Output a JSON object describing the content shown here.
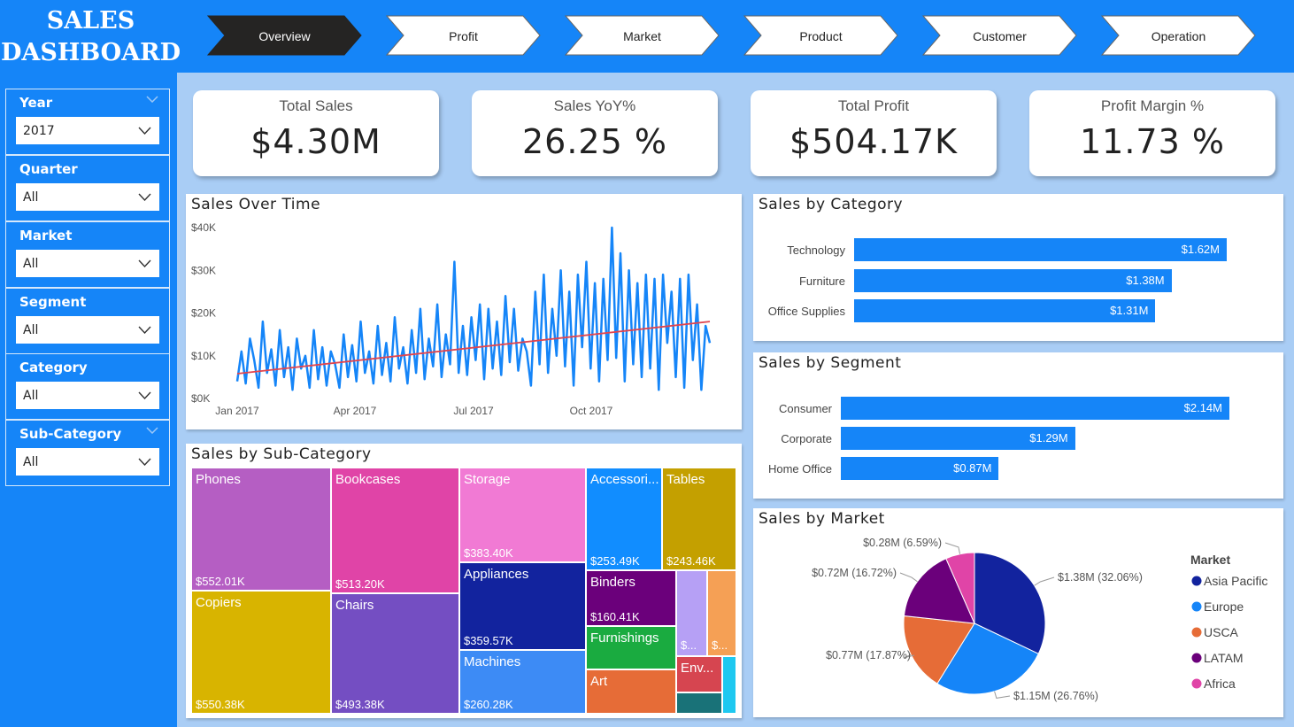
{
  "header": {
    "title_line1": "SALES",
    "title_line2": "DASHBOARD",
    "tabs": [
      {
        "label": "Overview",
        "active": true
      },
      {
        "label": "Profit",
        "active": false
      },
      {
        "label": "Market",
        "active": false
      },
      {
        "label": "Product",
        "active": false
      },
      {
        "label": "Customer",
        "active": false
      },
      {
        "label": "Operation",
        "active": false
      }
    ]
  },
  "filters": [
    {
      "label": "Year",
      "value": "2017"
    },
    {
      "label": "Quarter",
      "value": "All"
    },
    {
      "label": "Market",
      "value": "All"
    },
    {
      "label": "Segment",
      "value": "All"
    },
    {
      "label": "Category",
      "value": "All"
    },
    {
      "label": "Sub-Category",
      "value": "All"
    }
  ],
  "kpis": [
    {
      "label": "Total Sales",
      "value": "$4.30M"
    },
    {
      "label": "Sales YoY%",
      "value": "26.25 %"
    },
    {
      "label": "Total Profit",
      "value": "$504.17K"
    },
    {
      "label": "Profit Margin %",
      "value": "11.73 %"
    }
  ],
  "colors": {
    "brand": "#1585f8",
    "trend_line": "#e0454f",
    "background": "#a9cdf5"
  },
  "chart_data": [
    {
      "type": "line",
      "title": "Sales Over Time",
      "x_ticks": [
        "Jan 2017",
        "Apr 2017",
        "Jul 2017",
        "Oct 2017"
      ],
      "y_ticks": [
        "$0K",
        "$10K",
        "$20K",
        "$30K",
        "$40K"
      ],
      "ylim": [
        0,
        40000
      ],
      "x_range": [
        "2017-01-01",
        "2017-12-31"
      ],
      "series": [
        {
          "values": [
            4000,
            11000,
            3500,
            14000,
            9000,
            2500,
            18000,
            6000,
            11500,
            3000,
            16000,
            5000,
            12000,
            2000,
            14000,
            7000,
            10000,
            2500,
            16000,
            4500,
            12000,
            3000,
            11000,
            8000,
            2500,
            15000,
            5000,
            12500,
            4000,
            18000,
            6000,
            11000,
            3500,
            17000,
            5500,
            13000,
            4000,
            19000,
            7000,
            12000,
            3500,
            16000,
            6000,
            21000,
            4500,
            14000,
            7500,
            22000,
            5000,
            15000,
            8000,
            32000,
            6000,
            17000,
            5500,
            19000,
            9000,
            22000,
            4500,
            21000,
            7000,
            18000,
            5500,
            24000,
            8500,
            21000,
            6500,
            14000,
            11000,
            3000,
            25000,
            8000,
            29000,
            6000,
            21000,
            10000,
            30000,
            7500,
            25000,
            3000,
            29000,
            12000,
            32000,
            7000,
            27000,
            4000,
            28000,
            9000,
            40000,
            9500,
            34000,
            4000,
            30000,
            8000,
            27000,
            5000,
            29000,
            7000,
            28000,
            2000,
            29000,
            13000,
            25000,
            5000,
            28000,
            2500,
            29000,
            9000,
            22000,
            2000,
            17000,
            13000
          ],
          "color": "#1585f8"
        }
      ],
      "trend": {
        "start": 5800,
        "end": 18000,
        "color": "#e0454f"
      }
    },
    {
      "type": "bar",
      "title": "Sales by Category",
      "categories": [
        "Technology",
        "Furniture",
        "Office Supplies"
      ],
      "values": [
        1.62,
        1.38,
        1.31
      ],
      "value_labels": [
        "$1.62M",
        "$1.38M",
        "$1.31M"
      ],
      "xlim": [
        0,
        1.62
      ]
    },
    {
      "type": "bar",
      "title": "Sales by Segment",
      "categories": [
        "Consumer",
        "Corporate",
        "Home Office"
      ],
      "values": [
        2.14,
        1.29,
        0.87
      ],
      "value_labels": [
        "$2.14M",
        "$1.29M",
        "$0.87M"
      ],
      "xlim": [
        0,
        2.14
      ]
    },
    {
      "type": "pie",
      "title": "Sales by Market",
      "legend_title": "Market",
      "legend_position": "right",
      "slices": [
        {
          "name": "Asia Pacific",
          "value": 32.06,
          "label": "$1.38M (32.06%)",
          "color": "#12239e"
        },
        {
          "name": "Europe",
          "value": 26.76,
          "label": "$1.15M (26.76%)",
          "color": "#1585f8"
        },
        {
          "name": "USCA",
          "value": 17.87,
          "label": "$0.77M (17.87%)",
          "color": "#e66c37"
        },
        {
          "name": "LATAM",
          "value": 16.72,
          "label": "$0.72M (16.72%)",
          "color": "#6b007b"
        },
        {
          "name": "Africa",
          "value": 6.59,
          "label": "$0.28M (6.59%)",
          "color": "#e044a7"
        }
      ]
    },
    {
      "type": "treemap",
      "title": "Sales by Sub-Category",
      "items": [
        {
          "name": "Phones",
          "label": "$552.01K",
          "value": 552.01,
          "color": "#b55ec3"
        },
        {
          "name": "Copiers",
          "label": "$550.38K",
          "value": 550.38,
          "color": "#d8b400"
        },
        {
          "name": "Bookcases",
          "label": "$513.20K",
          "value": 513.2,
          "color": "#e044a7"
        },
        {
          "name": "Chairs",
          "label": "$493.38K",
          "value": 493.38,
          "color": "#744ec2"
        },
        {
          "name": "Storage",
          "label": "$383.40K",
          "value": 383.4,
          "color": "#f17ad4"
        },
        {
          "name": "Appliances",
          "label": "$359.57K",
          "value": 359.57,
          "color": "#12239e"
        },
        {
          "name": "Machines",
          "label": "$260.28K",
          "value": 260.28,
          "color": "#3d8bf5"
        },
        {
          "name": "Accessori...",
          "label": "$253.49K",
          "value": 253.49,
          "color": "#118dff"
        },
        {
          "name": "Tables",
          "label": "$243.46K",
          "value": 243.46,
          "color": "#c4a000"
        },
        {
          "name": "Binders",
          "label": "$160.41K",
          "value": 160.41,
          "color": "#6b007b"
        },
        {
          "name": "Furnishings",
          "label": "",
          "color": "#1aab40"
        },
        {
          "name": "Art",
          "label": "",
          "color": "#e66c37"
        },
        {
          "name": "$...",
          "label": "",
          "color": "#b6a0f5"
        },
        {
          "name": "$...",
          "label": "",
          "color": "#f5a055"
        },
        {
          "name": "Env...",
          "label": "",
          "color": "#d64550"
        },
        {
          "name": "",
          "label": "",
          "color": "#197278"
        },
        {
          "name": "",
          "label": "",
          "color": "#1ec8f0"
        }
      ]
    }
  ]
}
